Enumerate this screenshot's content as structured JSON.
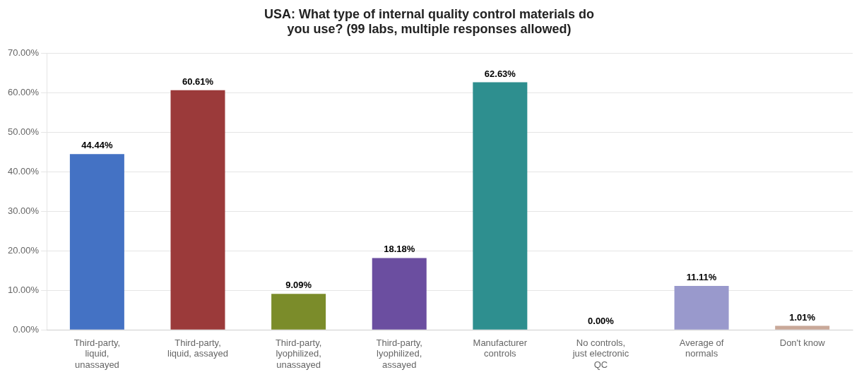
{
  "chart_data": {
    "type": "bar",
    "title": "USA: What type of internal quality control materials do\nyou use? (99 labs, multiple responses allowed)",
    "categories": [
      "Third-party,\nliquid,\nunassayed",
      "Third-party,\nliquid, assayed",
      "Third-party,\nlyophilized,\nunassayed",
      "Third-party,\nlyophilized,\nassayed",
      "Manufacturer\ncontrols",
      "No controls,\njust electronic\nQC",
      "Average of\nnormals",
      "Don't know"
    ],
    "values": [
      44.44,
      60.61,
      9.09,
      18.18,
      62.63,
      0.0,
      11.11,
      1.01
    ],
    "value_labels": [
      "44.44%",
      "60.61%",
      "9.09%",
      "18.18%",
      "62.63%",
      "0.00%",
      "11.11%",
      "1.01%"
    ],
    "data_labels": true,
    "colors": [
      "#4472C4",
      "#9B3A3A",
      "#7B8C2A",
      "#6B4EA0",
      "#2E8F8F",
      "#6699CC",
      "#9999CC",
      "#C9A898"
    ],
    "ylim": [
      0,
      70
    ],
    "yticks": [
      {
        "value": 0,
        "label": "0.00%"
      },
      {
        "value": 10,
        "label": "10.00%"
      },
      {
        "value": 20,
        "label": "20.00%"
      },
      {
        "value": 30,
        "label": "30.00%"
      },
      {
        "value": 40,
        "label": "40.00%"
      },
      {
        "value": 50,
        "label": "50.00%"
      },
      {
        "value": 60,
        "label": "60.00%"
      },
      {
        "value": 70,
        "label": "70.00%"
      }
    ],
    "grid": true
  }
}
